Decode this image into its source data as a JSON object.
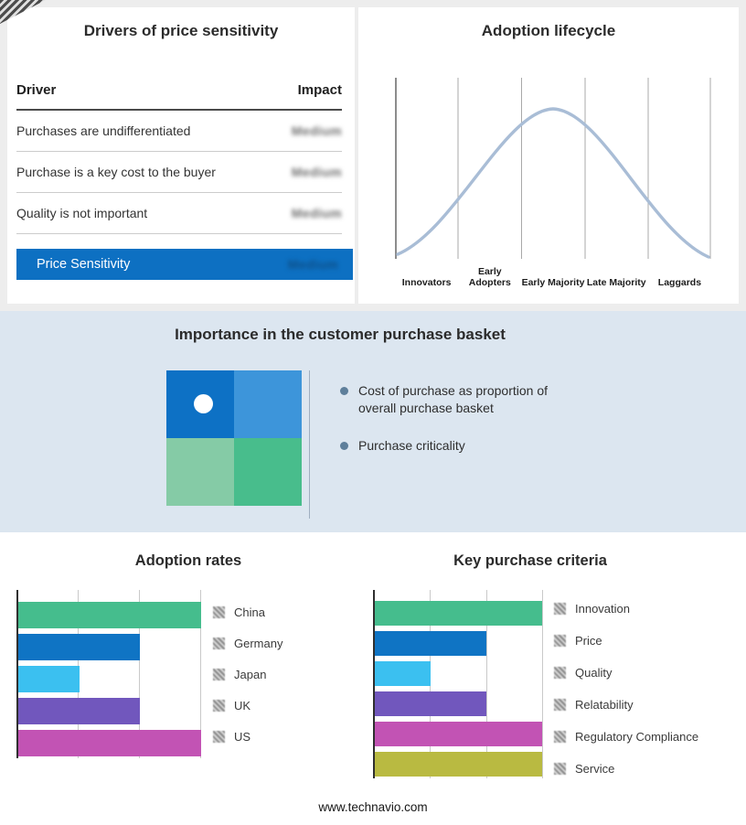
{
  "drivers_panel": {
    "title": "Drivers of price sensitivity",
    "columns": {
      "driver": "Driver",
      "impact": "Impact"
    },
    "rows": [
      {
        "driver": "Purchases are undifferentiated",
        "impact": "Medium"
      },
      {
        "driver": "Purchase is a key cost to the buyer",
        "impact": "Medium"
      },
      {
        "driver": "Quality is not important",
        "impact": "Medium"
      }
    ],
    "highlight": {
      "label": "Price Sensitivity",
      "impact": "Medium",
      "color": "#0d70c2"
    }
  },
  "basket_panel": {
    "title": "Importance in the customer purchase basket",
    "background": "#dce6f0",
    "quadrant_colors": [
      "#0d71c5",
      "#3d95da",
      "#85cba6",
      "#48bd8c"
    ],
    "bullets": [
      "Cost of purchase as proportion of overall purchase basket",
      "Purchase criticality"
    ]
  },
  "footer": {
    "url": "www.technavio.com"
  },
  "chart_data": [
    {
      "id": "adoption_lifecycle",
      "type": "line",
      "title": "Adoption lifecycle",
      "categories": [
        "Innovators",
        "Early Adopters",
        "Early Majority",
        "Late Majority",
        "Laggards"
      ],
      "values": [
        0.1,
        0.55,
        1.0,
        0.55,
        0.1
      ],
      "ylim": [
        0,
        1
      ],
      "curve_color": "#a9bdd6",
      "grid": true
    },
    {
      "id": "adoption_rates",
      "type": "bar",
      "orientation": "horizontal",
      "title": "Adoption rates",
      "categories": [
        "China",
        "Germany",
        "Japan",
        "UK",
        "US"
      ],
      "values": [
        3,
        2,
        1,
        2,
        3
      ],
      "xlim": [
        0,
        3
      ],
      "colors": [
        "#45bd8d",
        "#0f74c4",
        "#3bc0f0",
        "#7157bd",
        "#c253b4"
      ],
      "grid": true,
      "legend_position": "right"
    },
    {
      "id": "key_purchase_criteria",
      "type": "bar",
      "orientation": "horizontal",
      "title": "Key purchase criteria",
      "categories": [
        "Innovation",
        "Price",
        "Quality",
        "Relatability",
        "Regulatory Compliance",
        "Service"
      ],
      "values": [
        3,
        2,
        1,
        2,
        3,
        3
      ],
      "xlim": [
        0,
        3
      ],
      "colors": [
        "#45bd8d",
        "#0f74c4",
        "#3bc0f0",
        "#7157bd",
        "#c253b4",
        "#b9ba41"
      ],
      "grid": true,
      "legend_position": "right"
    }
  ]
}
